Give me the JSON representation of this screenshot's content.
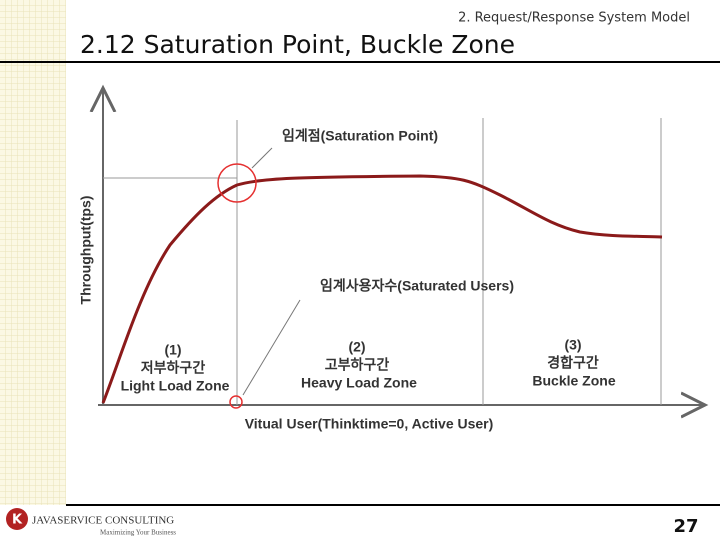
{
  "header": {
    "section": "2. Request/Response System Model",
    "title": "2.12 Saturation Point, Buckle Zone"
  },
  "diagram": {
    "y_axis_label": "Throughput(tps)",
    "x_axis_label": "Vitual User(Thinktime=0, Active User)",
    "annotations": [
      "임계점(Saturation Point)",
      "임계사용자수(Saturated Users)"
    ],
    "zones": [
      {
        "number": "(1)",
        "korean": "저부하구간",
        "english": "Light Load Zone"
      },
      {
        "number": "(2)",
        "korean": "고부하구간",
        "english": "Heavy Load Zone"
      },
      {
        "number": "(3)",
        "korean": "경합구간",
        "english": "Buckle Zone"
      }
    ]
  },
  "footer": {
    "company": "JAVASERVICE CONSULTING",
    "tagline": "Maximizing Your Business",
    "page": "27"
  }
}
